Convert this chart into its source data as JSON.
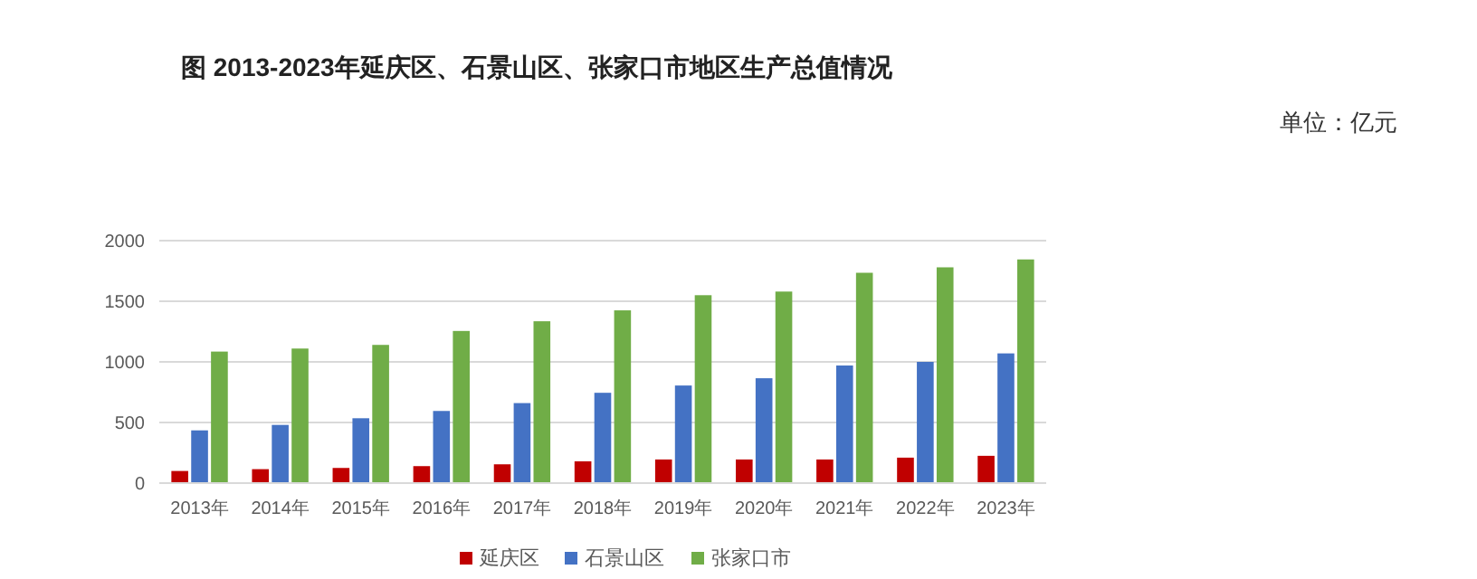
{
  "chart_data": {
    "type": "bar",
    "title": "图  2013-2023年延庆区、石景山区、张家口市地区生产总值情况",
    "annotations": [
      "单位：亿元"
    ],
    "categories": [
      "2013年",
      "2014年",
      "2015年",
      "2016年",
      "2017年",
      "2018年",
      "2019年",
      "2020年",
      "2021年",
      "2022年",
      "2023年"
    ],
    "series": [
      {
        "name": "延庆区",
        "color": "#c00000",
        "values": [
          100,
          115,
          125,
          140,
          155,
          180,
          195,
          195,
          195,
          210,
          225
        ]
      },
      {
        "name": "石景山区",
        "color": "#4472c4",
        "values": [
          435,
          480,
          535,
          595,
          660,
          745,
          805,
          865,
          970,
          1000,
          1070
        ]
      },
      {
        "name": "张家口市",
        "color": "#70ad47",
        "values": [
          1085,
          1110,
          1140,
          1255,
          1335,
          1425,
          1550,
          1580,
          1735,
          1780,
          1845
        ]
      }
    ],
    "ylim": [
      0,
      2000
    ],
    "yticks": [
      0,
      500,
      1000,
      1500,
      2000
    ],
    "grid": "y",
    "legend": "bottom"
  }
}
